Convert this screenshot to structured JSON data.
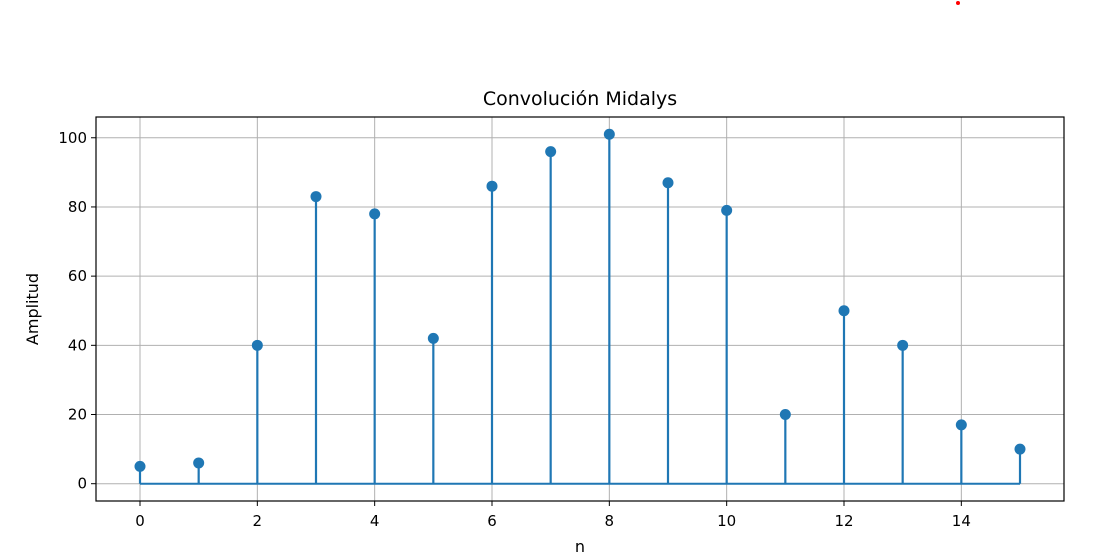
{
  "chart_data": {
    "type": "stem",
    "title": "Convolución Midalys",
    "xlabel": "n",
    "ylabel": "Amplitud",
    "x": [
      0,
      1,
      2,
      3,
      4,
      5,
      6,
      7,
      8,
      9,
      10,
      11,
      12,
      13,
      14,
      15
    ],
    "values": [
      5,
      6,
      40,
      83,
      78,
      42,
      86,
      96,
      101,
      87,
      79,
      20,
      50,
      40,
      17,
      10
    ],
    "xlim": [
      -0.75,
      15.75
    ],
    "ylim": [
      -5,
      106
    ],
    "xticks": [
      "0",
      "2",
      "4",
      "6",
      "8",
      "10",
      "12",
      "14"
    ],
    "yticks": [
      "0",
      "20",
      "40",
      "60",
      "80",
      "100"
    ],
    "grid": true,
    "colors": {
      "stem": "#1f77b4",
      "baseline": "#1f77b4",
      "grid": "#b0b0b0",
      "stray_dot": "#ff0000"
    }
  }
}
